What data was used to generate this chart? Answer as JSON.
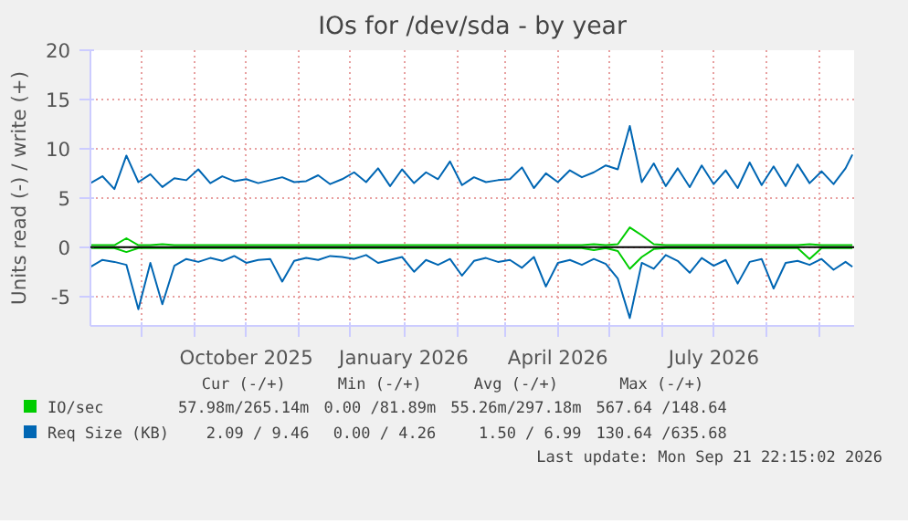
{
  "chart_data": {
    "type": "line",
    "title": "IOs for /dev/sda - by year",
    "ylabel": "Units read (-) / write (+)",
    "x": [
      "2025-07-02",
      "2025-07-09",
      "2025-07-16",
      "2025-07-23",
      "2025-07-30",
      "2025-08-06",
      "2025-08-13",
      "2025-08-20",
      "2025-08-27",
      "2025-09-03",
      "2025-09-10",
      "2025-09-17",
      "2025-09-24",
      "2025-10-01",
      "2025-10-08",
      "2025-10-15",
      "2025-10-22",
      "2025-10-29",
      "2025-11-05",
      "2025-11-12",
      "2025-11-19",
      "2025-11-26",
      "2025-12-03",
      "2025-12-10",
      "2025-12-17",
      "2025-12-24",
      "2025-12-31",
      "2026-01-07",
      "2026-01-14",
      "2026-01-21",
      "2026-01-28",
      "2026-02-04",
      "2026-02-11",
      "2026-02-18",
      "2026-02-25",
      "2026-03-04",
      "2026-03-11",
      "2026-03-18",
      "2026-03-25",
      "2026-04-01",
      "2026-04-08",
      "2026-04-15",
      "2026-04-22",
      "2026-04-29",
      "2026-05-06",
      "2026-05-13",
      "2026-05-20",
      "2026-05-27",
      "2026-06-03",
      "2026-06-10",
      "2026-06-17",
      "2026-06-24",
      "2026-07-01",
      "2026-07-08",
      "2026-07-15",
      "2026-07-22",
      "2026-07-29",
      "2026-08-05",
      "2026-08-12",
      "2026-08-19",
      "2026-08-26",
      "2026-09-02",
      "2026-09-09",
      "2026-09-16",
      "2026-09-20"
    ],
    "series": [
      {
        "name": "IO/sec",
        "color": "#00cc00",
        "values": [
          0.2,
          0.2,
          0.2,
          0.9,
          0.2,
          0.2,
          0.3,
          0.2,
          0.2,
          0.2,
          0.2,
          0.2,
          0.2,
          0.2,
          0.2,
          0.2,
          0.2,
          0.2,
          0.2,
          0.2,
          0.2,
          0.2,
          0.2,
          0.2,
          0.2,
          0.2,
          0.2,
          0.2,
          0.2,
          0.2,
          0.2,
          0.2,
          0.2,
          0.2,
          0.2,
          0.2,
          0.2,
          0.2,
          0.2,
          0.2,
          0.2,
          0.2,
          0.3,
          0.2,
          0.3,
          2.0,
          1.2,
          0.3,
          0.2,
          0.2,
          0.2,
          0.2,
          0.2,
          0.2,
          0.2,
          0.2,
          0.2,
          0.2,
          0.2,
          0.2,
          0.3,
          0.2,
          0.2,
          0.2,
          0.2
        ]
      },
      {
        "color": "#00cc00",
        "values": [
          -0.1,
          -0.1,
          -0.1,
          -0.5,
          -0.1,
          -0.1,
          -0.1,
          -0.1,
          -0.1,
          -0.1,
          -0.1,
          -0.1,
          -0.1,
          -0.1,
          -0.1,
          -0.1,
          -0.1,
          -0.1,
          -0.1,
          -0.1,
          -0.1,
          -0.1,
          -0.1,
          -0.1,
          -0.1,
          -0.1,
          -0.1,
          -0.1,
          -0.1,
          -0.1,
          -0.1,
          -0.1,
          -0.1,
          -0.1,
          -0.1,
          -0.1,
          -0.1,
          -0.1,
          -0.1,
          -0.1,
          -0.1,
          -0.1,
          -0.3,
          -0.1,
          -0.4,
          -2.2,
          -1.0,
          -0.2,
          -0.1,
          -0.1,
          -0.1,
          -0.1,
          -0.1,
          -0.1,
          -0.1,
          -0.1,
          -0.1,
          -0.1,
          -0.1,
          -0.1,
          -1.2,
          -0.1,
          -0.1,
          -0.1,
          -0.1
        ]
      },
      {
        "name": "Req Size (KB)",
        "color": "#0066b3",
        "values": [
          6.5,
          7.2,
          5.9,
          9.3,
          6.6,
          7.4,
          6.1,
          7.0,
          6.8,
          7.9,
          6.5,
          7.2,
          6.7,
          6.9,
          6.5,
          6.8,
          7.1,
          6.6,
          6.7,
          7.3,
          6.4,
          6.9,
          7.6,
          6.6,
          8.0,
          6.2,
          7.9,
          6.5,
          7.6,
          6.9,
          8.7,
          6.3,
          7.1,
          6.6,
          6.8,
          6.9,
          8.1,
          6.0,
          7.5,
          6.6,
          7.8,
          7.1,
          7.6,
          8.3,
          7.9,
          12.3,
          6.6,
          8.5,
          6.2,
          8.0,
          6.1,
          8.3,
          6.4,
          7.8,
          6.0,
          8.6,
          6.3,
          8.2,
          6.2,
          8.4,
          6.5,
          7.7,
          6.4,
          8.0,
          9.4
        ]
      },
      {
        "color": "#0066b3",
        "values": [
          -2.0,
          -1.3,
          -1.5,
          -1.8,
          -6.3,
          -1.6,
          -5.8,
          -1.9,
          -1.2,
          -1.5,
          -1.1,
          -1.4,
          -0.9,
          -1.6,
          -1.3,
          -1.2,
          -3.5,
          -1.4,
          -1.1,
          -1.3,
          -0.9,
          -1.0,
          -1.2,
          -0.8,
          -1.6,
          -1.3,
          -1.0,
          -2.5,
          -1.3,
          -1.8,
          -1.2,
          -2.9,
          -1.4,
          -1.1,
          -1.5,
          -1.3,
          -2.1,
          -1.0,
          -4.0,
          -1.6,
          -1.3,
          -1.8,
          -1.2,
          -1.7,
          -3.2,
          -7.2,
          -1.6,
          -2.2,
          -0.8,
          -1.4,
          -2.6,
          -1.1,
          -1.9,
          -1.3,
          -3.7,
          -1.5,
          -1.2,
          -4.2,
          -1.6,
          -1.4,
          -1.8,
          -1.2,
          -2.3,
          -1.5,
          -2.0
        ]
      }
    ],
    "xlim": [
      "2025-07-02",
      "2026-09-21"
    ],
    "xticks": [
      {
        "value": "2025-08-01",
        "label": null
      },
      {
        "value": "2025-09-01",
        "label": null
      },
      {
        "value": "2025-10-01",
        "label": "October 2025"
      },
      {
        "value": "2025-11-01",
        "label": null
      },
      {
        "value": "2025-12-01",
        "label": null
      },
      {
        "value": "2026-01-01",
        "label": "January 2026"
      },
      {
        "value": "2026-02-01",
        "label": null
      },
      {
        "value": "2026-03-01",
        "label": null
      },
      {
        "value": "2026-04-01",
        "label": "April 2026"
      },
      {
        "value": "2026-05-01",
        "label": null
      },
      {
        "value": "2026-06-01",
        "label": null
      },
      {
        "value": "2026-07-01",
        "label": "July 2026"
      },
      {
        "value": "2026-08-01",
        "label": null
      },
      {
        "value": "2026-09-01",
        "label": null
      }
    ],
    "ylim": [
      -8,
      20
    ],
    "yticks": [
      -5,
      0,
      5,
      10,
      15,
      20
    ],
    "grid": true,
    "legend": "bottom",
    "ref_lines": [
      {
        "axis": "y",
        "value": 0,
        "color": "#000000"
      }
    ],
    "annotations": [
      "Cur (-/+)",
      "Min (-/+)",
      "Avg (-/+)",
      "Max (-/+)",
      "57.98m/265.14m",
      "0.00 /81.89m",
      "55.26m/297.18m",
      "567.64 /148.64",
      "2.09 / 9.46",
      "0.00 / 4.26",
      "1.50 / 6.99",
      "130.64 /635.68",
      "Last update: Mon Sep 21 22:15:02 2026"
    ]
  }
}
